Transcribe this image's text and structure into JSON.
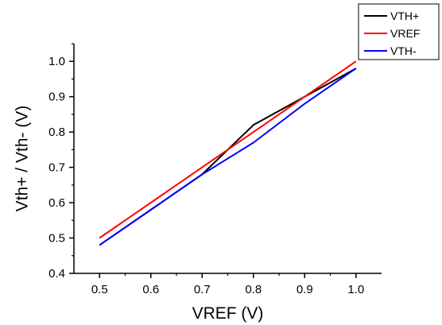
{
  "chart_data": {
    "type": "line",
    "xlabel": "VREF (V)",
    "ylabel": "Vth+ / Vth- (V)",
    "xlim": [
      0.45,
      1.05
    ],
    "ylim": [
      0.4,
      1.05
    ],
    "x": [
      0.5,
      0.6,
      0.7,
      0.8,
      0.9,
      1.0
    ],
    "x_ticks": [
      "0.5",
      "0.6",
      "0.7",
      "0.8",
      "0.9",
      "1.0"
    ],
    "y_ticks": [
      "0.4",
      "0.5",
      "0.6",
      "0.7",
      "0.8",
      "0.9",
      "1.0"
    ],
    "grid": false,
    "legend_position": "top-right",
    "series": [
      {
        "name": "VTH+",
        "color": "#000000",
        "values": [
          0.48,
          0.58,
          0.68,
          0.82,
          0.9,
          0.98
        ]
      },
      {
        "name": "VREF",
        "color": "#ff0000",
        "values": [
          0.5,
          0.6,
          0.7,
          0.8,
          0.9,
          1.0
        ]
      },
      {
        "name": "VTH-",
        "color": "#0000ff",
        "values": [
          0.48,
          0.58,
          0.68,
          0.77,
          0.88,
          0.98
        ]
      }
    ]
  }
}
